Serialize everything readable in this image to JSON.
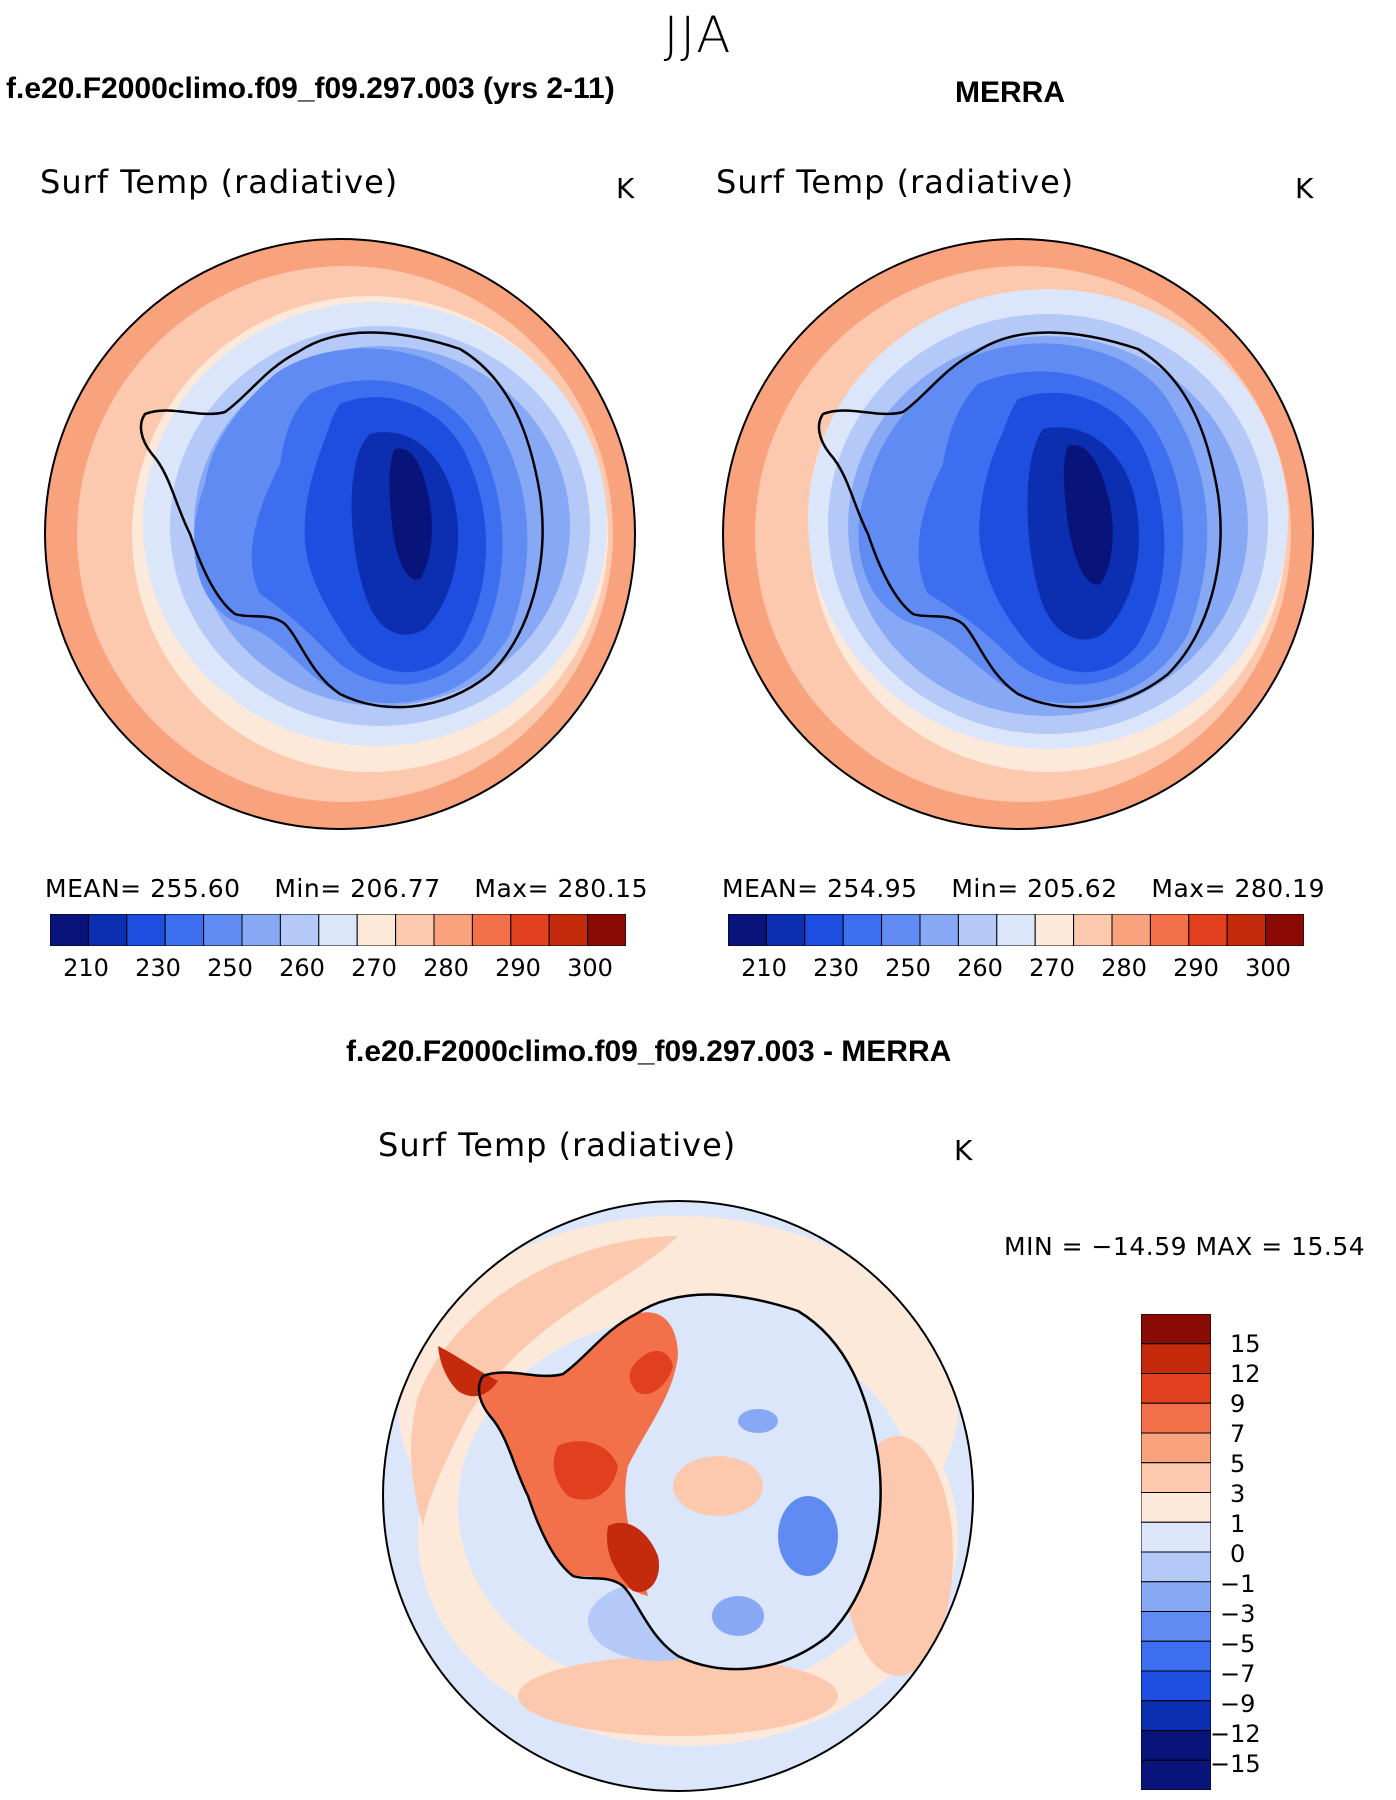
{
  "season": "JJA",
  "panels": [
    {
      "case_title": "f.e20.F2000climo.f09_f09.297.003 (yrs 2-11)",
      "variable": "Surf Temp (radiative)",
      "units": "K",
      "mean_label": "MEAN=",
      "mean": "255.60",
      "min_label": "Min=",
      "min": "206.77",
      "max_label": "Max=",
      "max": "280.15"
    },
    {
      "case_title": "MERRA",
      "variable": "Surf Temp (radiative)",
      "units": "K",
      "mean_label": "MEAN=",
      "mean": "254.95",
      "min_label": "Min=",
      "min": "205.62",
      "max_label": "Max=",
      "max": "280.19"
    }
  ],
  "diff": {
    "title": "f.e20.F2000climo.f09_f09.297.003 - MERRA",
    "variable": "Surf Temp (radiative)",
    "units": "K",
    "minmax_text": "MIN =  −14.59  MAX =   15.54"
  },
  "colors": {
    "abs_levels": [
      "#08147a",
      "#0b2fb0",
      "#1d4ee0",
      "#3d6ef0",
      "#5f8bf2",
      "#87a9f5",
      "#b4c9f8",
      "#dbe6fb",
      "#fde9da",
      "#fcc9ae",
      "#f9a27e",
      "#f3714a",
      "#e23f1e",
      "#c42a0c",
      "#8a0b06"
    ],
    "diff_levels": [
      "#08147a",
      "#0b2fb0",
      "#1d4ee0",
      "#3d6ef0",
      "#5f8bf2",
      "#87a9f5",
      "#b4c9f8",
      "#dbe6fb",
      "#fde9da",
      "#fcc9ae",
      "#f9a27e",
      "#f3714a",
      "#e23f1e",
      "#c42a0c",
      "#8a0b06"
    ]
  },
  "chart_data": [
    {
      "type": "heatmap",
      "projection": "south-polar-stereographic",
      "title": "f.e20.F2000climo.f09_f09.297.003 (yrs 2-11)",
      "variable": "Surf Temp (radiative)",
      "units": "K",
      "colorbar_ticks": [
        "210",
        "230",
        "250",
        "260",
        "270",
        "280",
        "290",
        "300"
      ],
      "colorbar_orientation": "horizontal",
      "mean": 255.6,
      "min": 206.77,
      "max": 280.15
    },
    {
      "type": "heatmap",
      "projection": "south-polar-stereographic",
      "title": "MERRA",
      "variable": "Surf Temp (radiative)",
      "units": "K",
      "colorbar_ticks": [
        "210",
        "230",
        "250",
        "260",
        "270",
        "280",
        "290",
        "300"
      ],
      "colorbar_orientation": "horizontal",
      "mean": 254.95,
      "min": 205.62,
      "max": 280.19
    },
    {
      "type": "heatmap",
      "projection": "south-polar-stereographic",
      "title": "f.e20.F2000climo.f09_f09.297.003 - MERRA",
      "variable": "Surf Temp (radiative)",
      "units": "K",
      "colorbar_ticks": [
        "15",
        "12",
        "9",
        "7",
        "5",
        "3",
        "1",
        "0",
        "−1",
        "−3",
        "−5",
        "−7",
        "−9",
        "−12",
        "−15"
      ],
      "colorbar_orientation": "vertical",
      "min": -14.59,
      "max": 15.54
    }
  ]
}
